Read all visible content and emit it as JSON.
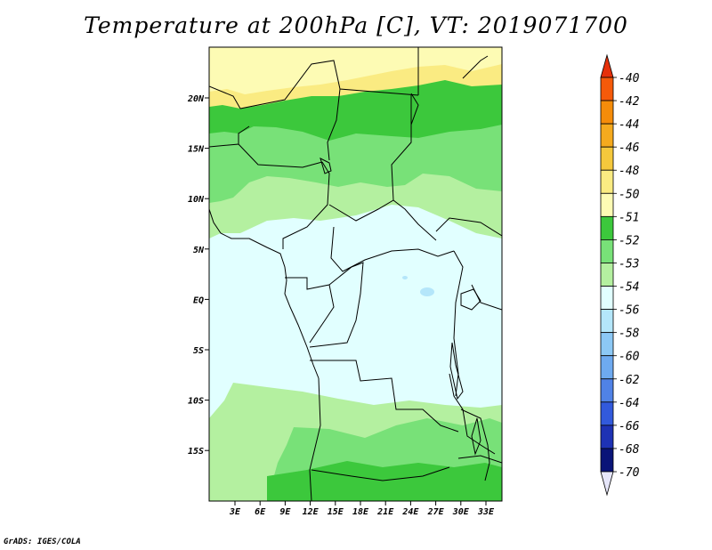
{
  "title": "Temperature at 200hPa [C], VT: 2019071700",
  "credit": "GrADS: IGES/COLA",
  "map": {
    "lat_labels": [
      "20N",
      "15N",
      "10N",
      "5N",
      "EQ",
      "5S",
      "10S",
      "15S"
    ],
    "lon_labels": [
      "3E",
      "6E",
      "9E",
      "12E",
      "15E",
      "18E",
      "21E",
      "24E",
      "27E",
      "30E",
      "33E"
    ]
  },
  "colorbar": {
    "labels": [
      "-40",
      "-42",
      "-44",
      "-46",
      "-48",
      "-50",
      "-51",
      "-52",
      "-53",
      "-54",
      "-56",
      "-58",
      "-60",
      "-62",
      "-64",
      "-66",
      "-68",
      "-70"
    ],
    "colors": [
      "#f0280a",
      "#f55a0a",
      "#f58c0a",
      "#f5aa1e",
      "#f5c83c",
      "#faeb82",
      "#fdfbb4",
      "#3cc83c",
      "#78e178",
      "#b4f0a0",
      "#e1ffff",
      "#b4e6fa",
      "#8cc8f5",
      "#6eaaf0",
      "#5082e6",
      "#325adc",
      "#1e32b4",
      "#0a1478"
    ],
    "top_arrow_color": "#e6300a",
    "bottom_arrow_color": "#e6e6fa"
  },
  "field_colors": {
    "pale_yellow": "#fdfbb4",
    "yellow": "#faeb82",
    "green_dark": "#3cc83c",
    "green_mid": "#78e178",
    "green_light": "#b4f0a0",
    "cyan_pale": "#e1ffff",
    "blue_light": "#b4e6fa",
    "border": "#000000"
  }
}
